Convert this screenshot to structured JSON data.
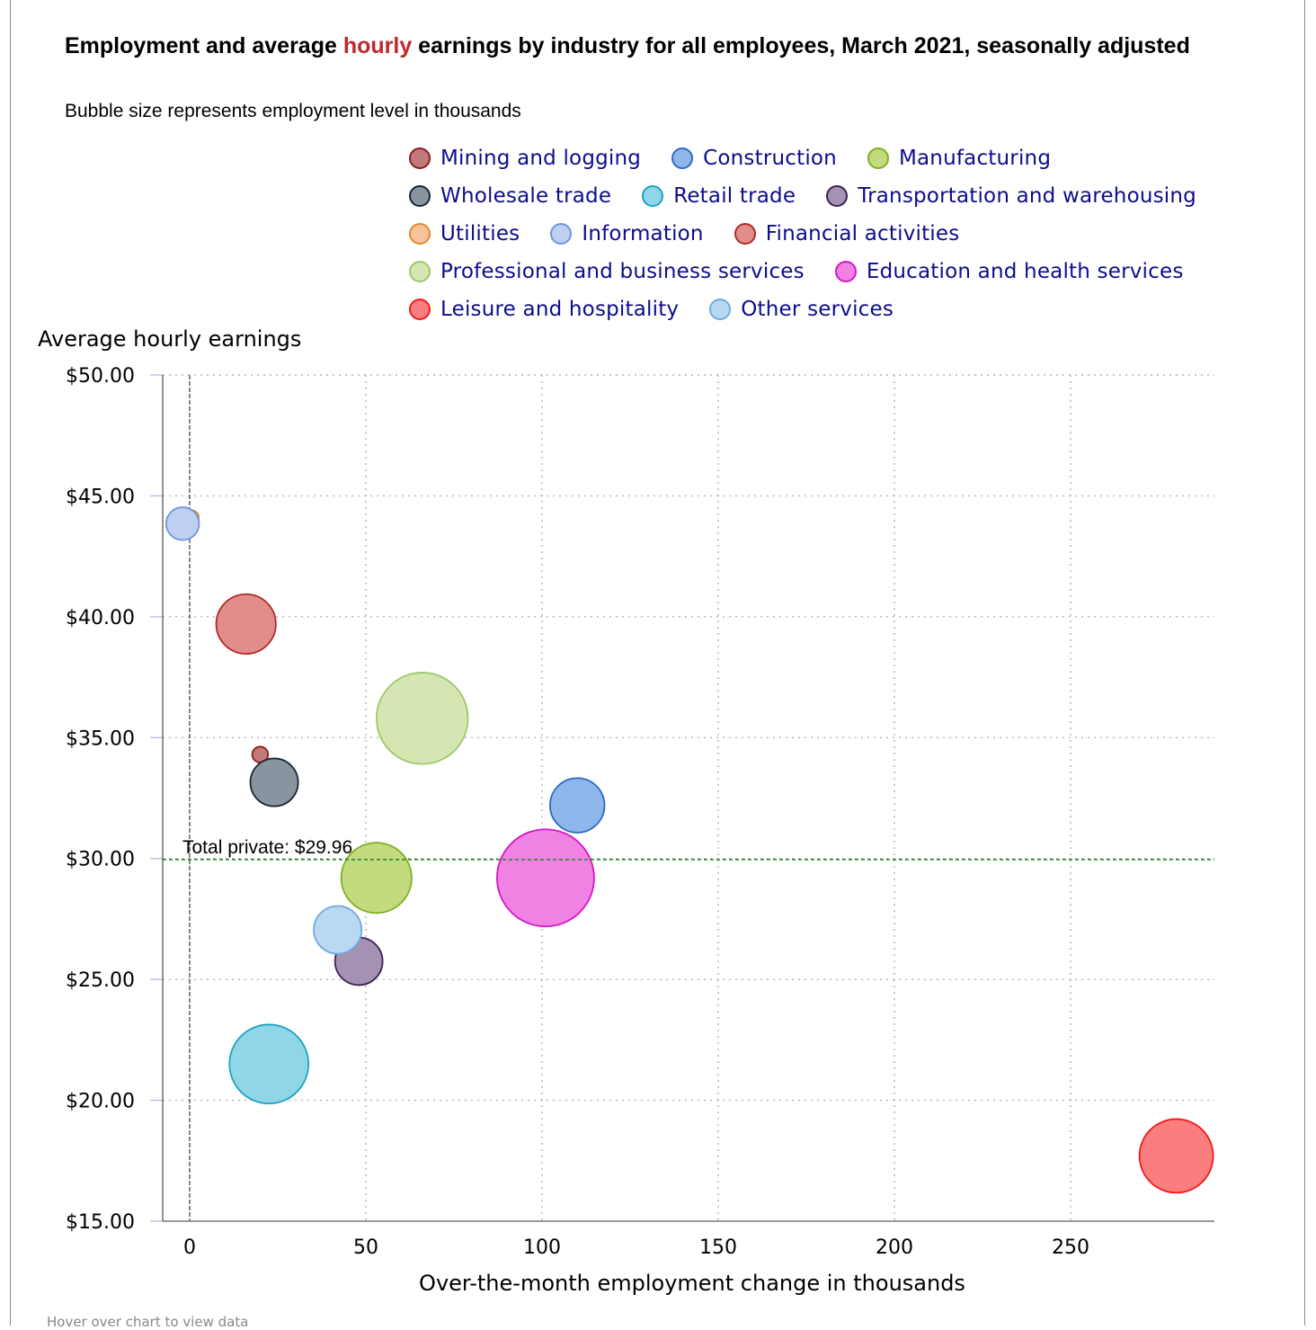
{
  "chart_data": {
    "type": "scatter",
    "variant": "bubble",
    "title_parts": [
      "Employment and average ",
      "hourly",
      " earnings by industry for all employees, March 2021, seasonally adjusted"
    ],
    "subtitle": "Bubble size represents employment level in thousands",
    "xlabel": "Over-the-month employment change in thousands",
    "ylabel": "Average hourly earnings",
    "xlim": [
      -8,
      290
    ],
    "ylim": [
      15,
      50
    ],
    "xticks": [
      0,
      50,
      100,
      150,
      200,
      250
    ],
    "yticks": [
      15,
      20,
      25,
      30,
      35,
      40,
      45,
      50
    ],
    "ytick_labels": [
      "$15.00",
      "$20.00",
      "$25.00",
      "$30.00",
      "$35.00",
      "$40.00",
      "$45.00",
      "$50.00"
    ],
    "grid": true,
    "legend_position": "top-right",
    "reference_line": {
      "y": 29.96,
      "label": "Total private: $29.96",
      "color": "#2a8a2a"
    },
    "zero_line_x": 0,
    "series": [
      {
        "name": "Mining and logging",
        "x": 20,
        "y": 34.3,
        "size": 620,
        "fill": "#c2797b",
        "stroke": "#8b1a1a"
      },
      {
        "name": "Construction",
        "x": 110,
        "y": 32.2,
        "size": 7350,
        "fill": "#8fb6ea",
        "stroke": "#2c6cc4"
      },
      {
        "name": "Manufacturing",
        "x": 53,
        "y": 29.2,
        "size": 12250,
        "fill": "#c3da7e",
        "stroke": "#7daf1e"
      },
      {
        "name": "Wholesale trade",
        "x": 24,
        "y": 33.15,
        "size": 5650,
        "fill": "#8894a0",
        "stroke": "#1a2535"
      },
      {
        "name": "Retail trade",
        "x": 22.5,
        "y": 21.5,
        "size": 15450,
        "fill": "#8fd7e6",
        "stroke": "#1fa3c1"
      },
      {
        "name": "Transportation and warehousing",
        "x": 48,
        "y": 25.75,
        "size": 5600,
        "fill": "#a592b3",
        "stroke": "#3b2151"
      },
      {
        "name": "Utilities",
        "x": 0.5,
        "y": 44.1,
        "size": 540,
        "fill": "#f6c49c",
        "stroke": "#e8862d"
      },
      {
        "name": "Information",
        "x": -2,
        "y": 43.85,
        "size": 2680,
        "fill": "#bed0f2",
        "stroke": "#6e95dc"
      },
      {
        "name": "Financial activities",
        "x": 16,
        "y": 39.7,
        "size": 8800,
        "fill": "#e18d8c",
        "stroke": "#b02a2a"
      },
      {
        "name": "Professional and business services",
        "x": 66,
        "y": 35.8,
        "size": 20700,
        "fill": "#d5e6b3",
        "stroke": "#9ec76a"
      },
      {
        "name": "Education and health services",
        "x": 101,
        "y": 29.2,
        "size": 23350,
        "fill": "#f082e3",
        "stroke": "#d517c3"
      },
      {
        "name": "Leisure and hospitality",
        "x": 280,
        "y": 17.7,
        "size": 13450,
        "fill": "#fa7e7e",
        "stroke": "#f21a1a"
      },
      {
        "name": "Other services",
        "x": 42,
        "y": 27.05,
        "size": 5650,
        "fill": "#bad8f2",
        "stroke": "#6fa9e0"
      }
    ],
    "legend_rows": [
      [
        "Mining and logging",
        "Construction",
        "Manufacturing"
      ],
      [
        "Wholesale trade",
        "Retail trade",
        "Transportation and warehousing"
      ],
      [
        "Utilities",
        "Information",
        "Financial activities"
      ],
      [
        "Professional and business services",
        "Education and health services"
      ],
      [
        "Leisure and hospitality",
        "Other services"
      ]
    ]
  },
  "footnote": "Hover over chart to view data"
}
